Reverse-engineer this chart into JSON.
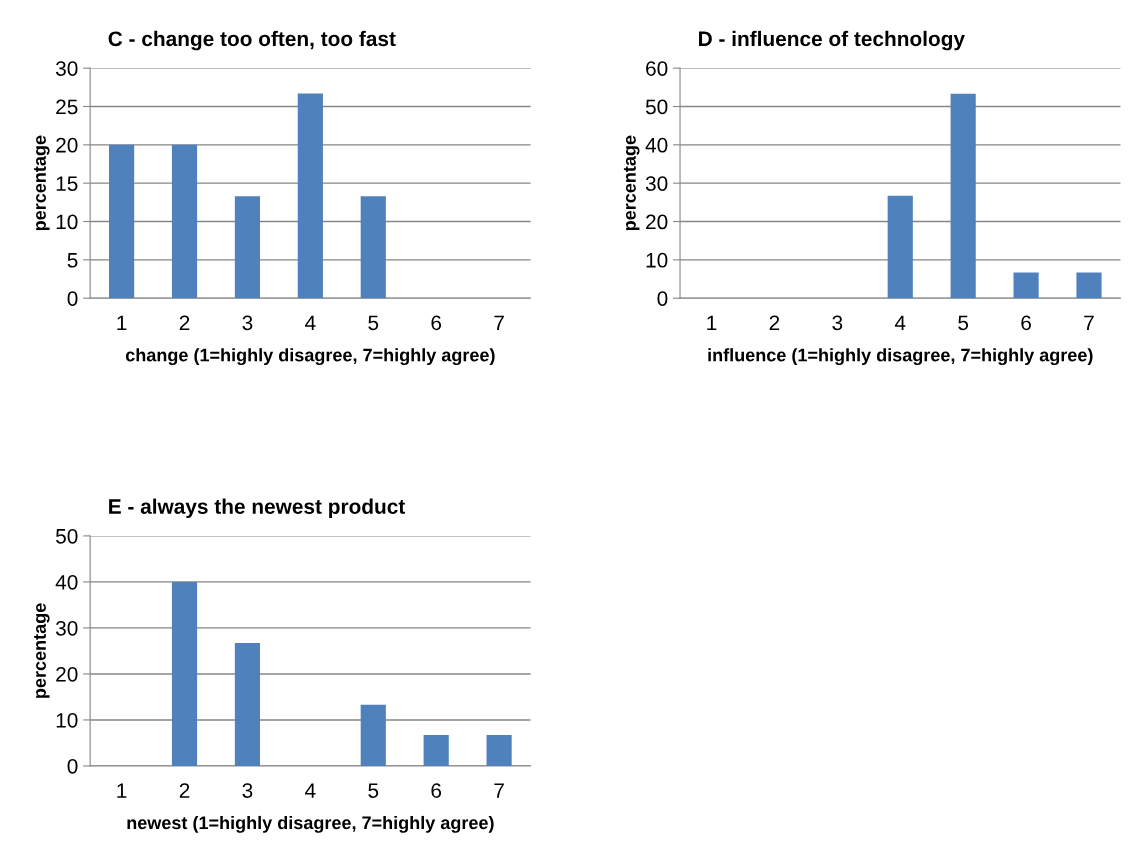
{
  "chart_data": [
    {
      "type": "bar",
      "title": "C - change too often, too fast",
      "xlabel": "change (1=highly disagree, 7=highly agree)",
      "ylabel": "percentage",
      "categories": [
        "1",
        "2",
        "3",
        "4",
        "5",
        "6",
        "7"
      ],
      "values": [
        20,
        20,
        13.3,
        26.7,
        13.3,
        0,
        0
      ],
      "color": "#4f81bd",
      "ylim": [
        0,
        30
      ],
      "yticks": [
        0,
        5,
        10,
        15,
        20,
        25,
        30
      ],
      "grid": "y",
      "legend": false
    },
    {
      "type": "bar",
      "title": "D - influence of technology",
      "xlabel": "influence (1=highly disagree, 7=highly agree)",
      "ylabel": "percentage",
      "categories": [
        "1",
        "2",
        "3",
        "4",
        "5",
        "6",
        "7"
      ],
      "values": [
        0,
        0,
        0,
        26.7,
        53.3,
        6.7,
        6.7
      ],
      "color": "#4f81bd",
      "ylim": [
        0,
        60
      ],
      "yticks": [
        0,
        10,
        20,
        30,
        40,
        50,
        60
      ],
      "grid": "y",
      "legend": false
    },
    {
      "type": "bar",
      "title": "E - always the newest product",
      "xlabel": "newest (1=highly disagree, 7=highly agree)",
      "ylabel": "percentage",
      "categories": [
        "1",
        "2",
        "3",
        "4",
        "5",
        "6",
        "7"
      ],
      "values": [
        0,
        40,
        26.7,
        0,
        13.3,
        6.7,
        6.7
      ],
      "color": "#4f81bd",
      "ylim": [
        0,
        50
      ],
      "yticks": [
        0,
        10,
        20,
        30,
        40,
        50
      ],
      "grid": "y",
      "legend": false
    }
  ]
}
